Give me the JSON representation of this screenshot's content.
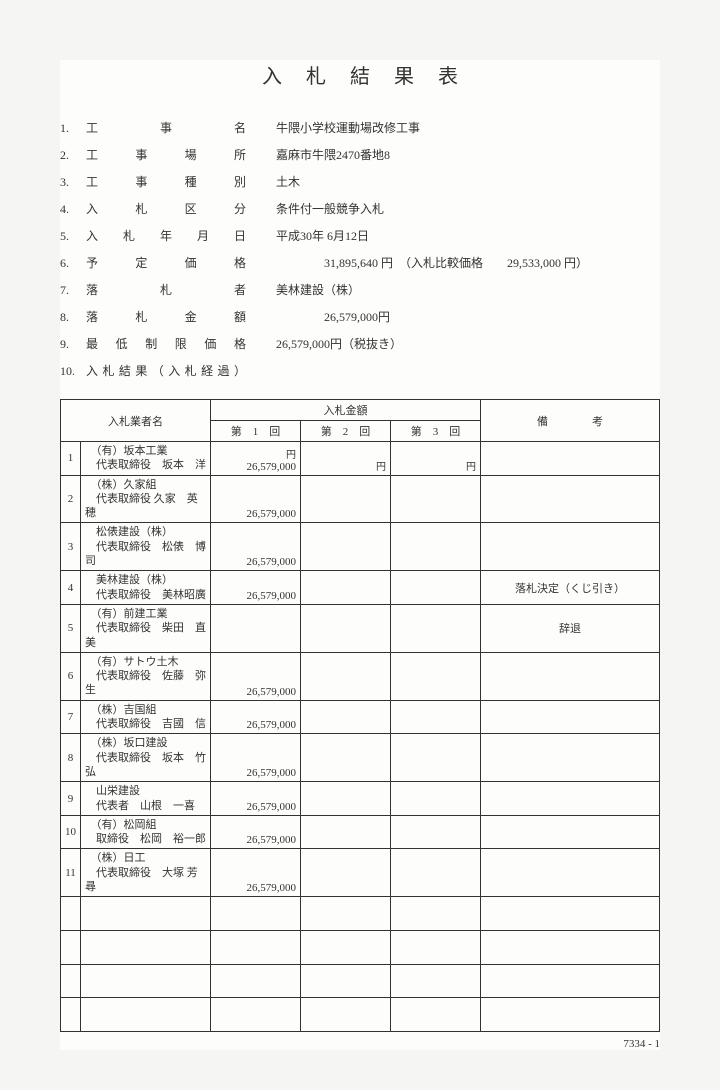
{
  "title": "入札結果表",
  "info": [
    {
      "num": "1.",
      "label": "工　　事　　名",
      "value": "牛隈小学校運動場改修工事"
    },
    {
      "num": "2.",
      "label": "工　事　場　所",
      "value": "嘉麻市牛隈2470番地8"
    },
    {
      "num": "3.",
      "label": "工　事　種　別",
      "value": "土木"
    },
    {
      "num": "4.",
      "label": "入　札　区　分",
      "value": "条件付一般競争入札"
    },
    {
      "num": "5.",
      "label": "入 札 年 月 日",
      "value": "平成30年 6月12日"
    },
    {
      "num": "6.",
      "label": "予　定　価　格",
      "value": "　　　　31,895,640 円　（入札比較価格　　29,533,000 円）"
    },
    {
      "num": "7.",
      "label": "落　　札　　者",
      "value": "美林建設（株）"
    },
    {
      "num": "8.",
      "label": "落　札　金　額",
      "value": "　　　　26,579,000円"
    },
    {
      "num": "9.",
      "label": "最低制限価格",
      "value": "26,579,000円（税抜き）"
    },
    {
      "num": "10.",
      "label": "入札結果（入札経過）",
      "value": ""
    }
  ],
  "headers": {
    "bidder": "入札業者名",
    "amount": "入札金額",
    "round1": "第　1　回",
    "round2": "第　2　回",
    "round3": "第　3　回",
    "note": "備　　　　考",
    "unit": "円"
  },
  "rows": [
    {
      "n": "1",
      "name1": "（有）坂本工業",
      "name2": "代表取締役　坂本　洋",
      "a1": "26,579,000",
      "a2": "",
      "a3": "",
      "note": ""
    },
    {
      "n": "2",
      "name1": "（株）久家組",
      "name2": "代表取締役 久家　英穂",
      "a1": "26,579,000",
      "a2": "",
      "a3": "",
      "note": ""
    },
    {
      "n": "3",
      "name1": "松俵建設（株）",
      "name2": "代表取締役　松俵　博司",
      "a1": "26,579,000",
      "a2": "",
      "a3": "",
      "note": ""
    },
    {
      "n": "4",
      "name1": "美林建設（株）",
      "name2": "代表取締役　美林昭廣",
      "a1": "26,579,000",
      "a2": "",
      "a3": "",
      "note": "落札決定（くじ引き）"
    },
    {
      "n": "5",
      "name1": "（有）前建工業",
      "name2": "代表取締役　柴田　直美",
      "a1": "",
      "a2": "",
      "a3": "",
      "note": "辞退"
    },
    {
      "n": "6",
      "name1": "（有）サトウ土木",
      "name2": "代表取締役　佐藤　弥生",
      "a1": "26,579,000",
      "a2": "",
      "a3": "",
      "note": ""
    },
    {
      "n": "7",
      "name1": "（株）吉国組",
      "name2": "代表取締役　吉國　信",
      "a1": "26,579,000",
      "a2": "",
      "a3": "",
      "note": ""
    },
    {
      "n": "8",
      "name1": "（株）坂口建設",
      "name2": "代表取締役　坂本　竹弘",
      "a1": "26,579,000",
      "a2": "",
      "a3": "",
      "note": ""
    },
    {
      "n": "9",
      "name1": "山栄建設",
      "name2": "代表者　山根　一喜",
      "a1": "26,579,000",
      "a2": "",
      "a3": "",
      "note": ""
    },
    {
      "n": "10",
      "name1": "（有）松岡組",
      "name2": "取締役　松岡　裕一郎",
      "a1": "26,579,000",
      "a2": "",
      "a3": "",
      "note": ""
    },
    {
      "n": "11",
      "name1": "（株）日工",
      "name2": "代表取締役　大塚 芳尋",
      "a1": "26,579,000",
      "a2": "",
      "a3": "",
      "note": ""
    }
  ],
  "blank_rows": 4,
  "footer": "7334 - 1"
}
